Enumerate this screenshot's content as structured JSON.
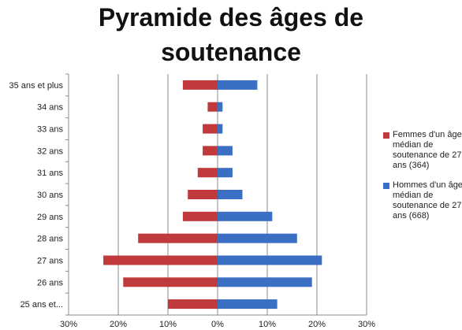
{
  "chart_data": {
    "type": "bar",
    "orientation": "horizontal",
    "layout": "population-pyramid",
    "title_lines": [
      "Pyramide des âges de",
      "soutenance"
    ],
    "categories": [
      "35 ans et plus",
      "34 ans",
      "33 ans",
      "32 ans",
      "31 ans",
      "30 ans",
      "29 ans",
      "28 ans",
      "27 ans",
      "26 ans",
      "25 ans et..."
    ],
    "series": [
      {
        "name": "Femmes d'un âge médian de soutenance de 27 ans (364)",
        "color": "#c0393b",
        "side": "left",
        "values": [
          7,
          2,
          3,
          3,
          4,
          6,
          7,
          16,
          23,
          19,
          10
        ]
      },
      {
        "name": "Hommes d'un âge médian de soutenance de 27 ans (668)",
        "color": "#3a6fc4",
        "side": "right",
        "values": [
          8,
          1,
          1,
          3,
          3,
          5,
          11,
          16,
          21,
          19,
          12
        ]
      }
    ],
    "xlim": [
      -30,
      30
    ],
    "xticks": [
      {
        "value": -30,
        "label": "30%"
      },
      {
        "value": -20,
        "label": "20%"
      },
      {
        "value": -10,
        "label": "10%"
      },
      {
        "value": 0,
        "label": "0%"
      },
      {
        "value": 10,
        "label": "10%"
      },
      {
        "value": 20,
        "label": "20%"
      },
      {
        "value": 30,
        "label": "30%"
      }
    ],
    "grid": "vertical",
    "legend_position": "right"
  }
}
